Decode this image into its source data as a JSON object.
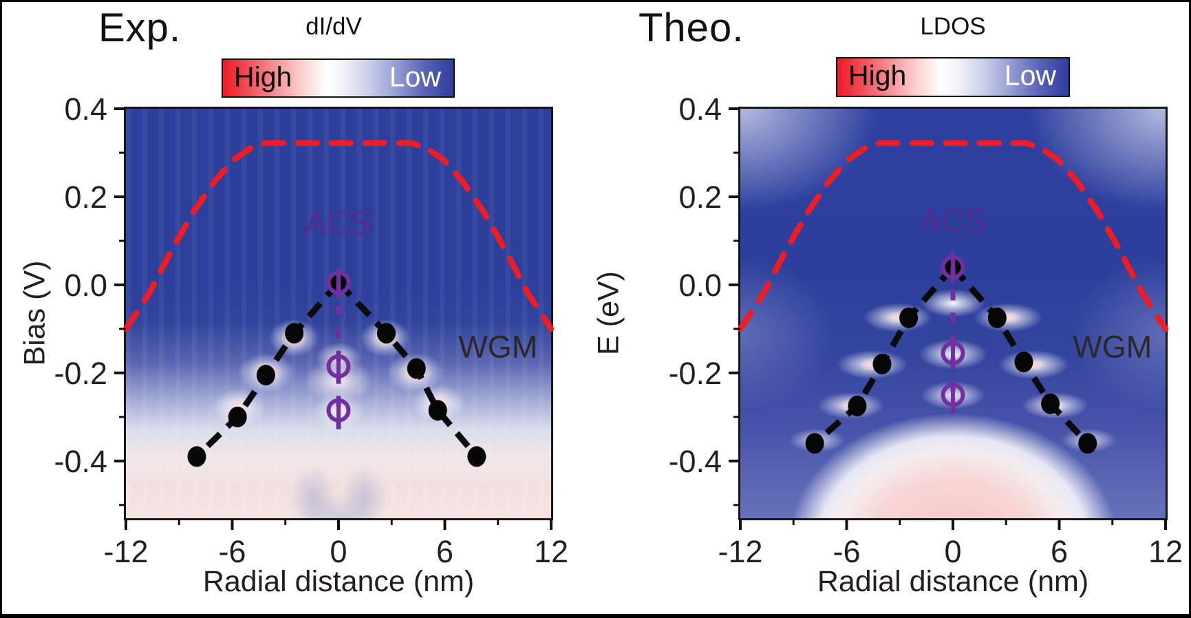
{
  "figure": {
    "background": "#ffffff",
    "border_color": "#000000"
  },
  "colors": {
    "heatmap_blue": "#2c3f9b",
    "dash_red": "#ee1c25",
    "acs_purple": "#7030a0",
    "dot_black": "#060606",
    "axis_black": "#231f20",
    "colorbar_red_end": "#ee1c25",
    "colorbar_blue_end": "#2f3d9e"
  },
  "panels": [
    {
      "id": "exp",
      "title": "Exp.",
      "colorbar": {
        "label": "dI/dV",
        "high_label": "High",
        "low_label": "Low"
      },
      "y_axis_label": "Bias (V)",
      "x_axis_label": "Radial distance (nm)"
    },
    {
      "id": "theo",
      "title": "Theo.",
      "colorbar": {
        "label": "LDOS",
        "high_label": "High",
        "low_label": "Low"
      },
      "y_axis_label": "E (eV)",
      "x_axis_label": "Radial distance (nm)"
    }
  ],
  "chart_data": [
    {
      "type": "heatmap",
      "panel": "Exp.",
      "value_label": "dI/dV",
      "colormap": "red=High, white=mid, blue=Low",
      "x_label": "Radial distance (nm)",
      "y_label": "Bias (V)",
      "x_range": [
        -12,
        12
      ],
      "y_range_top_bottom": [
        0.4,
        -0.53
      ],
      "x_major_ticks": [
        -12,
        -6,
        0,
        6,
        12
      ],
      "x_tick_labels": [
        "-12",
        "-6",
        "0",
        "6",
        "12"
      ],
      "x_minor_ticks": [
        -9,
        -3,
        3,
        9
      ],
      "y_major_ticks": [
        0.4,
        0.2,
        0.0,
        -0.2,
        -0.4
      ],
      "y_tick_labels": [
        "0.4",
        "0.2",
        "0.0",
        "-0.2",
        "-0.4"
      ],
      "y_minor_ticks": [
        0.3,
        0.1,
        -0.1,
        -0.3,
        -0.5
      ],
      "confinement_boundary": [
        [
          -12,
          -0.1
        ],
        [
          -10.7,
          -0.02
        ],
        [
          -9.4,
          0.08
        ],
        [
          -8.2,
          0.165
        ],
        [
          -7.0,
          0.235
        ],
        [
          -5.9,
          0.285
        ],
        [
          -4.9,
          0.312
        ],
        [
          -4.1,
          0.322
        ],
        [
          4.1,
          0.322
        ],
        [
          4.9,
          0.312
        ],
        [
          5.9,
          0.285
        ],
        [
          7.0,
          0.235
        ],
        [
          8.2,
          0.165
        ],
        [
          9.4,
          0.08
        ],
        [
          10.7,
          -0.02
        ],
        [
          12,
          -0.1
        ]
      ],
      "wgm_left_branch": [
        [
          0,
          0.005
        ],
        [
          -2.5,
          -0.11
        ],
        [
          -4.1,
          -0.205
        ],
        [
          -5.7,
          -0.3
        ],
        [
          -8.0,
          -0.39
        ]
      ],
      "wgm_right_branch": [
        [
          0,
          0.005
        ],
        [
          2.7,
          -0.11
        ],
        [
          4.4,
          -0.19
        ],
        [
          5.6,
          -0.285
        ],
        [
          7.8,
          -0.39
        ]
      ],
      "acs_points": [
        [
          0,
          0.005
        ],
        [
          0,
          -0.185
        ],
        [
          0,
          -0.285
        ]
      ],
      "acs_line_y": [
        0.005,
        -0.35
      ],
      "annotations": [
        {
          "text": "ACS",
          "x": 0,
          "y": 0.115,
          "color": "#5b2b8c",
          "size": 48,
          "opacity": 0.85
        },
        {
          "text": "WGM",
          "x": 9.0,
          "y": -0.165,
          "color": "#2b2727",
          "size": 45,
          "opacity": 1
        }
      ]
    },
    {
      "type": "heatmap",
      "panel": "Theo.",
      "value_label": "LDOS",
      "colormap": "red=High, white=mid, blue=Low",
      "x_label": "Radial distance (nm)",
      "y_label": "E (eV)",
      "x_range": [
        -12,
        12
      ],
      "y_range_top_bottom": [
        0.4,
        -0.53
      ],
      "x_major_ticks": [
        -12,
        -6,
        0,
        6,
        12
      ],
      "x_tick_labels": [
        "-12",
        "-6",
        "0",
        "6",
        "12"
      ],
      "x_minor_ticks": [
        -9,
        -3,
        3,
        9
      ],
      "y_major_ticks": [
        0.4,
        0.2,
        0.0,
        -0.2,
        -0.4
      ],
      "y_tick_labels": [
        "0.4",
        "0.2",
        "0.0",
        "-0.2",
        "-0.4"
      ],
      "y_minor_ticks": [
        0.3,
        0.1,
        -0.1,
        -0.3,
        -0.5
      ],
      "confinement_boundary": [
        [
          -12,
          -0.1
        ],
        [
          -10.7,
          -0.02
        ],
        [
          -9.4,
          0.08
        ],
        [
          -8.2,
          0.165
        ],
        [
          -7.0,
          0.235
        ],
        [
          -5.9,
          0.285
        ],
        [
          -4.9,
          0.312
        ],
        [
          -4.1,
          0.322
        ],
        [
          4.1,
          0.322
        ],
        [
          4.9,
          0.312
        ],
        [
          5.9,
          0.285
        ],
        [
          7.0,
          0.235
        ],
        [
          8.2,
          0.165
        ],
        [
          9.4,
          0.08
        ],
        [
          10.7,
          -0.02
        ],
        [
          12,
          -0.1
        ]
      ],
      "wgm_left_branch": [
        [
          0,
          0.04
        ],
        [
          -2.5,
          -0.075
        ],
        [
          -4.0,
          -0.18
        ],
        [
          -5.4,
          -0.275
        ],
        [
          -7.8,
          -0.36
        ]
      ],
      "wgm_right_branch": [
        [
          0,
          0.04
        ],
        [
          2.5,
          -0.075
        ],
        [
          4.0,
          -0.175
        ],
        [
          5.5,
          -0.27
        ],
        [
          7.6,
          -0.36
        ]
      ],
      "acs_points": [
        [
          0,
          0.04
        ],
        [
          0,
          -0.155
        ],
        [
          0,
          -0.25
        ]
      ],
      "acs_line_y": [
        0.04,
        -0.315
      ],
      "annotations": [
        {
          "text": "ACS",
          "x": 0,
          "y": 0.12,
          "color": "#5b2b8c",
          "size": 48,
          "opacity": 0.85
        },
        {
          "text": "WGM",
          "x": 9.0,
          "y": -0.165,
          "color": "#2b2727",
          "size": 45,
          "opacity": 1
        }
      ]
    }
  ]
}
